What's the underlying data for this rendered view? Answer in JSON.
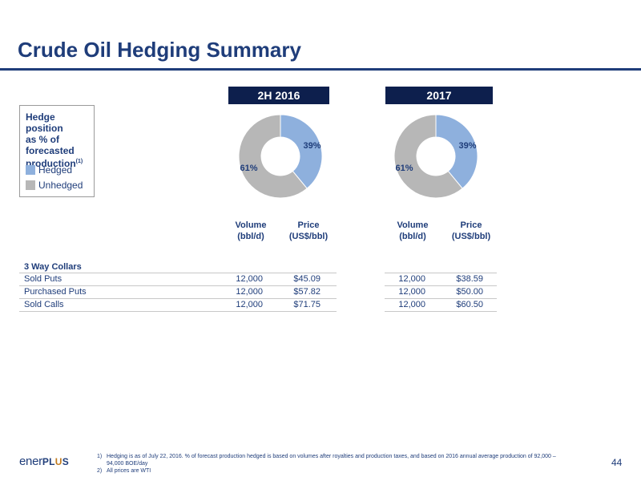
{
  "page": {
    "title": "Crude Oil Hedging Summary",
    "page_number": "44",
    "logo": {
      "text_prefix": "ener",
      "text_suffix_1": "PL",
      "text_suffix_o": "U",
      "text_suffix_2": "S"
    }
  },
  "legend": {
    "title_line1": "Hedge position",
    "title_line2": "as % of",
    "title_line3": "forecasted",
    "title_line4": "production",
    "title_sup": "(1)",
    "items": [
      {
        "label": "Hedged",
        "color": "#8eb0dd"
      },
      {
        "label": "Unhedged",
        "color": "#b7b7b7"
      }
    ]
  },
  "chart_data": [
    {
      "type": "pie",
      "title": "2H 2016",
      "categories": [
        "Hedged",
        "Unhedged"
      ],
      "values": [
        39,
        61
      ],
      "labels": [
        "39%",
        "61%"
      ],
      "colors": [
        "#8eb0dd",
        "#b7b7b7"
      ],
      "donut": true
    },
    {
      "type": "pie",
      "title": "2017",
      "categories": [
        "Hedged",
        "Unhedged"
      ],
      "values": [
        39,
        61
      ],
      "labels": [
        "39%",
        "61%"
      ],
      "colors": [
        "#8eb0dd",
        "#b7b7b7"
      ],
      "donut": true
    }
  ],
  "table": {
    "col_volume_line1": "Volume",
    "col_volume_line2": "(bbl/d)",
    "col_price_line1": "Price",
    "col_price_line2": "(US$/bbl)",
    "section": "3 Way Collars",
    "rows": [
      {
        "label": "Sold Puts",
        "vol_2016": "12,000",
        "price_2016": "$45.09",
        "vol_2017": "12,000",
        "price_2017": "$38.59"
      },
      {
        "label": "Purchased Puts",
        "vol_2016": "12,000",
        "price_2016": "$57.82",
        "vol_2017": "12,000",
        "price_2017": "$50.00"
      },
      {
        "label": "Sold Calls",
        "vol_2016": "12,000",
        "price_2016": "$71.75",
        "vol_2017": "12,000",
        "price_2017": "$60.50"
      }
    ]
  },
  "footnotes": [
    {
      "num": "1)",
      "text": "Hedging is as of July 22, 2016. % of forecast production hedged is based on volumes after royalties and production taxes, and based on 2016 annual average production of 92,000 – 94,000 BOE/day"
    },
    {
      "num": "2)",
      "text": "All prices are WTI"
    }
  ]
}
